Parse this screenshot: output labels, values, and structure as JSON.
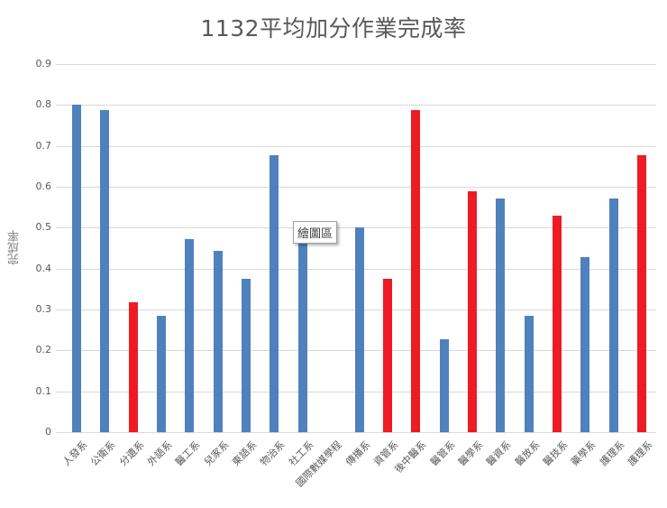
{
  "chart_data": {
    "type": "bar",
    "title": "1132平均加分作業完成率",
    "xlabel": "",
    "ylabel": "完成率",
    "ylim": [
      0,
      0.9
    ],
    "yticks": [
      "0",
      "0.1",
      "0.2",
      "0.3",
      "0.4",
      "0.5",
      "0.6",
      "0.7",
      "0.8",
      "0.9"
    ],
    "grid": true,
    "legend": "none",
    "categories": [
      "人發系",
      "公衛系",
      "分遺系",
      "外語系",
      "醫工系",
      "兒家系",
      "東語系",
      "物治系",
      "社工系",
      "國際數媒學程",
      "傳播系",
      "資管系",
      "後中醫系",
      "醫管系",
      "醫學系",
      "醫資系",
      "醫放系",
      "醫技系",
      "藥學系",
      "護理系",
      "護理系"
    ],
    "values": [
      0.8,
      0.787,
      0.318,
      0.285,
      0.471,
      0.444,
      0.376,
      0.678,
      0.471,
      0,
      0.5,
      0.376,
      0.787,
      0.228,
      0.59,
      0.572,
      0.285,
      0.53,
      0.429,
      0.572,
      0.678
    ],
    "bar_colors": [
      "blue",
      "blue",
      "red",
      "blue",
      "blue",
      "blue",
      "blue",
      "blue",
      "blue",
      "blue",
      "blue",
      "red",
      "red",
      "blue",
      "red",
      "blue",
      "blue",
      "red",
      "blue",
      "blue",
      "red"
    ]
  },
  "colors": {
    "blue": "#4f81bd",
    "red": "#ed1c24",
    "grid": "#d9d9d9",
    "text": "#595959"
  },
  "tooltip": {
    "label": "繪圖區"
  }
}
